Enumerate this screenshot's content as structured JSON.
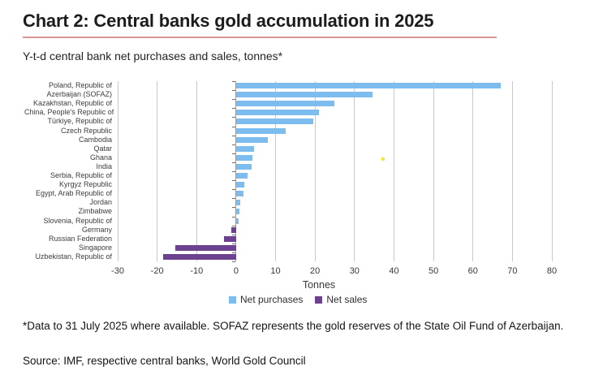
{
  "page": {
    "title": "Chart 2: Central banks gold accumulation in 2025",
    "subtitle": "Y-t-d central bank net purchases and sales, tonnes*",
    "footnote": "*Data to 31 July 2025 where available. SOFAZ represents the gold reserves of the State Oil Fund of Azerbaijan.",
    "source": "Source: IMF, respective central banks, World Gold Council"
  },
  "legend": {
    "purchases_label": "Net purchases",
    "sales_label": "Net sales"
  },
  "colors": {
    "purchases": "#7CBCEE",
    "sales": "#6B4190",
    "gridline": "#c9c9c9",
    "zero_line": "#9b9b9b",
    "title_underline": "#c23b3b",
    "stray_dot": "#F4E52E"
  },
  "chart_data": {
    "type": "bar",
    "orientation": "horizontal",
    "title": "Chart 2: Central banks gold accumulation in 2025",
    "subtitle": "Y-t-d central bank net purchases and sales, tonnes*",
    "xlabel": "Tonnes",
    "ylabel": "",
    "xlim": [
      -30,
      80
    ],
    "xticks": [
      -30,
      -20,
      -10,
      0,
      10,
      20,
      30,
      40,
      50,
      60,
      70,
      80
    ],
    "grid": "vertical gridlines at every 10 tonnes",
    "legend_position": "bottom",
    "series_rule": "positive values = Net purchases (blue), negative values = Net sales (purple)",
    "categories": [
      "Poland, Republic of",
      "Azerbaijan (SOFAZ)",
      "Kazakhstan, Republic of",
      "China, People's Republic of",
      "Türkiye, Republic of",
      "Czech Republic",
      "Cambodia",
      "Qatar",
      "Ghana",
      "India",
      "Serbia, Republic of",
      "Kyrgyz Republic",
      "Egypt, Arab Republic of",
      "Jordan",
      "Zimbabwe",
      "Slovenia, Republic of",
      "Germany",
      "Russian Federation",
      "Singapore",
      "Uzbekistan, Republic of"
    ],
    "values": [
      67,
      34.6,
      25,
      21,
      19.6,
      12.5,
      8,
      4.5,
      4.2,
      3.9,
      2.9,
      2.1,
      1.8,
      1.0,
      0.9,
      0.7,
      -1.2,
      -3,
      -15.5,
      -18.5
    ]
  }
}
